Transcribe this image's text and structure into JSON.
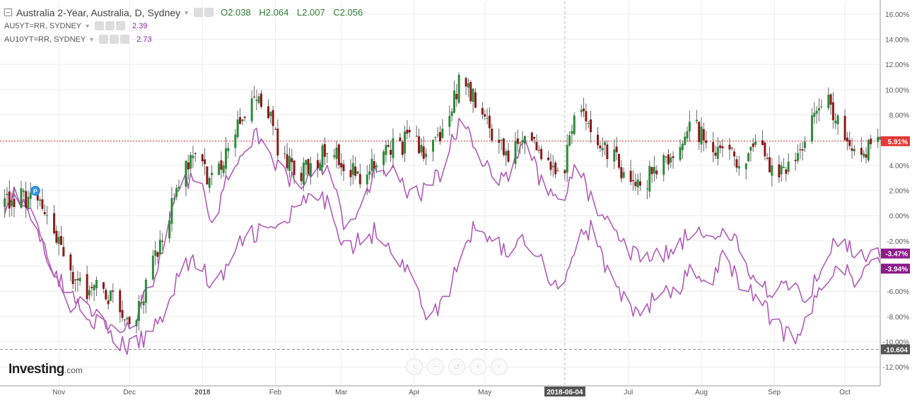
{
  "header": {
    "main_title": "Australia 2-Year, Australia, D, Sydney",
    "ohlc": {
      "o": "O2.038",
      "h": "H2.064",
      "l": "L2.007",
      "c": "C2.056"
    },
    "series2_label": "AU5YT=RR, SYDNEY",
    "series2_value": "2.39",
    "series3_label": "AU10YT=RR, SYDNEY",
    "series3_value": "2.73"
  },
  "branding": {
    "logo_text": "Investing",
    "logo_suffix": ".com"
  },
  "colors": {
    "up": "#2e8b3a",
    "down": "#8b1a1a",
    "compare": "#b05cb8",
    "price_line": "#e53935",
    "grid": "#ececec"
  },
  "chart_data": {
    "type": "candlestick",
    "title": "Australia 2-Year, Australia, D, Sydney",
    "y_axis": {
      "unit": "%",
      "range": [
        -13.5,
        17
      ],
      "ticks": [
        "16.00%",
        "14.00%",
        "12.00%",
        "10.00%",
        "8.00%",
        "6.00%",
        "4.00%",
        "2.00%",
        "0.00%",
        "-2.00%",
        "-4.00%",
        "-6.00%",
        "-8.00%",
        "-10.00%",
        "-12.00%"
      ],
      "tick_values": [
        16,
        14,
        12,
        10,
        8,
        6,
        4,
        2,
        0,
        -2,
        -4,
        -6,
        -8,
        -10,
        -12
      ]
    },
    "x_axis": {
      "labels": [
        "Nov",
        "Dec",
        "2018",
        "Feb",
        "Mar",
        "Apr",
        "May",
        "2018-06-04",
        "Jul",
        "Aug",
        "Sep",
        "Oct"
      ],
      "highlighted": "2018-06-04",
      "start": "2017-10-07",
      "end": "2018-10-16"
    },
    "badges": [
      {
        "label": "5.91%",
        "value": 5.91,
        "color": "#e53935"
      },
      {
        "label": "-3.47%",
        "value": -3.47,
        "color": "#8e1a8e"
      },
      {
        "label": "-3.94%",
        "value": -3.94,
        "color": "#8e1a8e"
      },
      {
        "label": "-10.604",
        "value": -10.604,
        "color": "#555"
      }
    ],
    "current_price_line": 5.91,
    "dashed_level": -10.604,
    "series": [
      {
        "name": "Australia 2-Year",
        "kind": "candles",
        "anchors": [
          [
            "2017-10-07",
            0.8
          ],
          [
            "2017-10-14",
            1.5
          ],
          [
            "2017-10-21",
            1.2
          ],
          [
            "2017-10-28",
            -0.5
          ],
          [
            "2017-11-04",
            -4
          ],
          [
            "2017-11-11",
            -6
          ],
          [
            "2017-11-18",
            -5.5
          ],
          [
            "2017-11-25",
            -7
          ],
          [
            "2017-12-02",
            -8.8
          ],
          [
            "2017-12-09",
            -5
          ],
          [
            "2017-12-16",
            -1
          ],
          [
            "2017-12-23",
            3.5
          ],
          [
            "2017-12-30",
            4.5
          ],
          [
            "2018-01-06",
            2.5
          ],
          [
            "2018-01-13",
            6.5
          ],
          [
            "2018-01-20",
            8.5
          ],
          [
            "2018-01-27",
            9.5
          ],
          [
            "2018-02-03",
            5
          ],
          [
            "2018-02-10",
            3
          ],
          [
            "2018-02-17",
            4
          ],
          [
            "2018-02-24",
            6
          ],
          [
            "2018-03-03",
            4
          ],
          [
            "2018-03-10",
            2.5
          ],
          [
            "2018-03-17",
            4.5
          ],
          [
            "2018-03-24",
            5.5
          ],
          [
            "2018-03-31",
            6
          ],
          [
            "2018-04-07",
            5
          ],
          [
            "2018-04-14",
            7
          ],
          [
            "2018-04-21",
            11
          ],
          [
            "2018-04-28",
            8.5
          ],
          [
            "2018-05-05",
            6
          ],
          [
            "2018-05-12",
            5
          ],
          [
            "2018-05-19",
            7
          ],
          [
            "2018-05-26",
            4.5
          ],
          [
            "2018-06-02",
            2.5
          ],
          [
            "2018-06-09",
            8.5
          ],
          [
            "2018-06-16",
            7
          ],
          [
            "2018-06-23",
            5
          ],
          [
            "2018-06-30",
            3
          ],
          [
            "2018-07-07",
            2.5
          ],
          [
            "2018-07-14",
            4
          ],
          [
            "2018-07-21",
            5
          ],
          [
            "2018-07-28",
            7
          ],
          [
            "2018-08-04",
            6
          ],
          [
            "2018-08-11",
            5
          ],
          [
            "2018-08-18",
            4
          ],
          [
            "2018-08-25",
            5.5
          ],
          [
            "2018-09-01",
            3
          ],
          [
            "2018-09-08",
            4
          ],
          [
            "2018-09-15",
            6
          ],
          [
            "2018-09-22",
            10
          ],
          [
            "2018-09-29",
            7
          ],
          [
            "2018-10-06",
            4
          ],
          [
            "2018-10-13",
            6
          ],
          [
            "2018-10-16",
            5.9
          ]
        ]
      },
      {
        "name": "AU5YT=RR, SYDNEY",
        "kind": "line",
        "anchors": [
          [
            "2017-10-07",
            0.5
          ],
          [
            "2017-10-14",
            2
          ],
          [
            "2017-10-21",
            -0.5
          ],
          [
            "2017-10-28",
            -4
          ],
          [
            "2017-11-04",
            -7
          ],
          [
            "2017-11-11",
            -7.5
          ],
          [
            "2017-11-18",
            -8.5
          ],
          [
            "2017-11-25",
            -10
          ],
          [
            "2017-12-02",
            -10.5
          ],
          [
            "2017-12-09",
            -9.5
          ],
          [
            "2017-12-16",
            -7.5
          ],
          [
            "2017-12-23",
            -4
          ],
          [
            "2017-12-30",
            -3.5
          ],
          [
            "2018-01-06",
            -6
          ],
          [
            "2018-01-13",
            -3.5
          ],
          [
            "2018-01-20",
            -1.5
          ],
          [
            "2018-01-27",
            -1.2
          ],
          [
            "2018-02-03",
            -1
          ],
          [
            "2018-02-10",
            0.5
          ],
          [
            "2018-02-17",
            1.5
          ],
          [
            "2018-02-24",
            0.8
          ],
          [
            "2018-03-03",
            -2.5
          ],
          [
            "2018-03-10",
            -2
          ],
          [
            "2018-03-17",
            -1
          ],
          [
            "2018-03-24",
            -3
          ],
          [
            "2018-03-31",
            -5
          ],
          [
            "2018-04-07",
            -8
          ],
          [
            "2018-04-14",
            -7
          ],
          [
            "2018-04-21",
            -3
          ],
          [
            "2018-04-28",
            -0.5
          ],
          [
            "2018-05-05",
            -2
          ],
          [
            "2018-05-12",
            -3
          ],
          [
            "2018-05-19",
            -1.5
          ],
          [
            "2018-05-26",
            -4
          ],
          [
            "2018-06-02",
            -6
          ],
          [
            "2018-06-09",
            -2
          ],
          [
            "2018-06-16",
            -1
          ],
          [
            "2018-06-23",
            -5
          ],
          [
            "2018-06-30",
            -7
          ],
          [
            "2018-07-07",
            -7.8
          ],
          [
            "2018-07-14",
            -6
          ],
          [
            "2018-07-21",
            -6.5
          ],
          [
            "2018-07-28",
            -4
          ],
          [
            "2018-08-04",
            -6
          ],
          [
            "2018-08-11",
            -3
          ],
          [
            "2018-08-18",
            -5.5
          ],
          [
            "2018-08-25",
            -6.5
          ],
          [
            "2018-09-01",
            -8.5
          ],
          [
            "2018-09-08",
            -9.8
          ],
          [
            "2018-09-15",
            -8.5
          ],
          [
            "2018-09-22",
            -5
          ],
          [
            "2018-09-29",
            -3.5
          ],
          [
            "2018-10-06",
            -6
          ],
          [
            "2018-10-13",
            -2.5
          ],
          [
            "2018-10-16",
            -3.94
          ]
        ]
      },
      {
        "name": "AU10YT=RR, SYDNEY",
        "kind": "line",
        "anchors": [
          [
            "2017-10-07",
            1
          ],
          [
            "2017-10-14",
            1.8
          ],
          [
            "2017-10-21",
            -0.5
          ],
          [
            "2017-10-28",
            -3.5
          ],
          [
            "2017-11-04",
            -6
          ],
          [
            "2017-11-11",
            -7
          ],
          [
            "2017-11-18",
            -8
          ],
          [
            "2017-11-25",
            -9
          ],
          [
            "2017-12-02",
            -8.8
          ],
          [
            "2017-12-09",
            -6
          ],
          [
            "2017-12-16",
            -2
          ],
          [
            "2017-12-23",
            2.5
          ],
          [
            "2017-12-30",
            3
          ],
          [
            "2018-01-06",
            -0.5
          ],
          [
            "2018-01-13",
            4
          ],
          [
            "2018-01-20",
            6
          ],
          [
            "2018-01-27",
            6.5
          ],
          [
            "2018-02-03",
            3.5
          ],
          [
            "2018-02-10",
            2.5
          ],
          [
            "2018-02-17",
            3
          ],
          [
            "2018-02-24",
            4.5
          ],
          [
            "2018-03-03",
            -1.5
          ],
          [
            "2018-03-10",
            0.5
          ],
          [
            "2018-03-17",
            4.5
          ],
          [
            "2018-03-24",
            3
          ],
          [
            "2018-03-31",
            1.5
          ],
          [
            "2018-04-07",
            2
          ],
          [
            "2018-04-14",
            4
          ],
          [
            "2018-04-21",
            8
          ],
          [
            "2018-04-28",
            4.5
          ],
          [
            "2018-05-05",
            3
          ],
          [
            "2018-05-12",
            3.5
          ],
          [
            "2018-05-19",
            6
          ],
          [
            "2018-05-26",
            2
          ],
          [
            "2018-06-02",
            1
          ],
          [
            "2018-06-09",
            4
          ],
          [
            "2018-06-16",
            1
          ],
          [
            "2018-06-23",
            -1
          ],
          [
            "2018-06-30",
            -2.5
          ],
          [
            "2018-07-07",
            -3.5
          ],
          [
            "2018-07-14",
            -3
          ],
          [
            "2018-07-21",
            -3
          ],
          [
            "2018-07-28",
            -1
          ],
          [
            "2018-08-04",
            -2.5
          ],
          [
            "2018-08-11",
            -1
          ],
          [
            "2018-08-18",
            -3
          ],
          [
            "2018-08-25",
            -5.5
          ],
          [
            "2018-09-01",
            -6
          ],
          [
            "2018-09-08",
            -5
          ],
          [
            "2018-09-15",
            -7
          ],
          [
            "2018-09-22",
            -3
          ],
          [
            "2018-09-29",
            -1.5
          ],
          [
            "2018-10-06",
            -3.5
          ],
          [
            "2018-10-13",
            -2.5
          ],
          [
            "2018-10-16",
            -3.47
          ]
        ]
      }
    ]
  }
}
